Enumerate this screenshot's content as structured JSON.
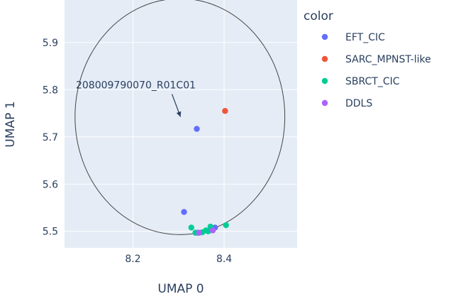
{
  "chart_data": {
    "type": "scatter",
    "xlabel": "UMAP 0",
    "ylabel": "UMAP 1",
    "xlim": [
      8.05,
      8.56
    ],
    "ylim": [
      5.465,
      5.99
    ],
    "xticks": [
      8.2,
      8.4
    ],
    "xtick_labels": [
      "8.2",
      "8.4"
    ],
    "yticks": [
      5.5,
      5.6,
      5.7,
      5.8,
      5.9
    ],
    "ytick_labels": [
      "5.5",
      "5.6",
      "5.7",
      "5.8",
      "5.9"
    ],
    "grid": true,
    "legend": {
      "title": "color",
      "position": "right"
    },
    "series": [
      {
        "name": "EFT_CIC",
        "color": "#636efa",
        "x": [
          8.34,
          8.312,
          8.38,
          8.342
        ],
        "y": [
          5.717,
          5.541,
          5.508,
          5.497
        ]
      },
      {
        "name": "SARC_MPNST-like",
        "color": "#ef553b",
        "x": [
          8.402
        ],
        "y": [
          5.755
        ]
      },
      {
        "name": "SBRCT_CIC",
        "color": "#00cc96",
        "x": [
          8.328,
          8.337,
          8.352,
          8.365,
          8.37,
          8.404,
          8.36
        ],
        "y": [
          5.508,
          5.497,
          5.498,
          5.5,
          5.51,
          5.513,
          5.502
        ]
      },
      {
        "name": "DDLS",
        "color": "#ab63fa",
        "x": [
          8.345,
          8.375
        ],
        "y": [
          5.497,
          5.502
        ]
      }
    ],
    "circle": {
      "cx": 8.303,
      "cy": 5.743,
      "rx": 0.23,
      "ry": 0.25,
      "color": "#444444"
    },
    "annotation": {
      "text": "208009790070_R01C01",
      "x": 8.34,
      "y": 5.717
    }
  }
}
